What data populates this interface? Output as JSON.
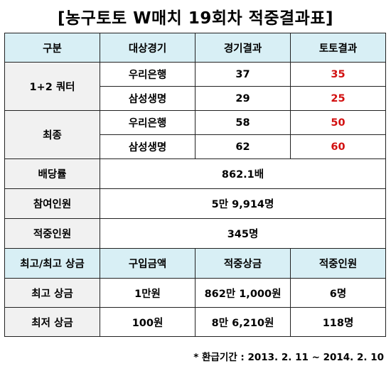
{
  "title": "[농구토토 W매치 19회차 적중결과표]",
  "header": {
    "c1": "구분",
    "c2": "대상경기",
    "c3": "경기결과",
    "c4": "토토결과"
  },
  "sections": [
    {
      "label": "1+2 쿼터",
      "rows": [
        {
          "team": "우리은행",
          "score": "37",
          "toto": "35"
        },
        {
          "team": "삼성생명",
          "score": "29",
          "toto": "25"
        }
      ]
    },
    {
      "label": "최종",
      "rows": [
        {
          "team": "우리은행",
          "score": "58",
          "toto": "50"
        },
        {
          "team": "삼성생명",
          "score": "62",
          "toto": "60"
        }
      ]
    }
  ],
  "summary": [
    {
      "label": "배당률",
      "value": "862.1배"
    },
    {
      "label": "참여인원",
      "value": "5만 9,914명"
    },
    {
      "label": "적중인원",
      "value": "345명"
    }
  ],
  "prize_header": {
    "c1": "최고/최고 상금",
    "c2": "구입금액",
    "c3": "적중상금",
    "c4": "적중인원"
  },
  "prizes": [
    {
      "label": "최고 상금",
      "purchase": "1만원",
      "prize": "862만 1,000원",
      "winners": "6명"
    },
    {
      "label": "최저 상금",
      "purchase": "100원",
      "prize": "8만 6,210원",
      "winners": "118명"
    }
  ],
  "footnote": "* 환급기간 : 2013. 2. 11 ~ 2014. 2. 10",
  "colors": {
    "header_bg": "#d8eff5",
    "highlight": "#d21010",
    "label_bg": "#f1f1f1"
  }
}
